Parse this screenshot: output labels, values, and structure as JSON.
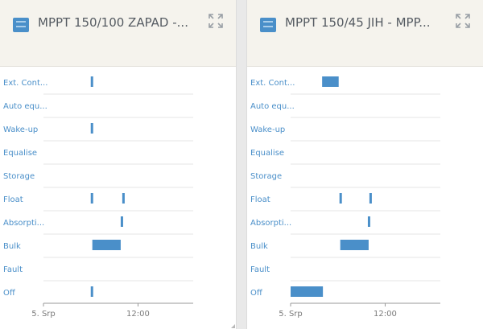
{
  "panels": [
    {
      "title": "MPPT 150/100 ZAPAD -...",
      "icon": "solar-charger-icon",
      "expand_icon": "expand-icon",
      "chart_data": {
        "type": "timeline",
        "categories": [
          "Ext. Cont...",
          "Auto equ...",
          "Wake-up",
          "Equalise",
          "Storage",
          "Float",
          "Absorpti...",
          "Bulk",
          "Fault",
          "Off"
        ],
        "x_ticks": [
          "5. Srp",
          "12:00"
        ],
        "x_range_hours": [
          0,
          19
        ],
        "segments": [
          {
            "state": "Ext. Cont...",
            "start": 6.0,
            "end": 6.3
          },
          {
            "state": "Wake-up",
            "start": 6.0,
            "end": 6.3
          },
          {
            "state": "Float",
            "start": 6.0,
            "end": 6.3
          },
          {
            "state": "Float",
            "start": 10.0,
            "end": 10.3
          },
          {
            "state": "Absorpti...",
            "start": 9.8,
            "end": 10.1
          },
          {
            "state": "Bulk",
            "start": 6.2,
            "end": 9.8
          },
          {
            "state": "Off",
            "start": 6.0,
            "end": 6.3
          }
        ]
      }
    },
    {
      "title": "MPPT 150/45 JIH - MPP...",
      "icon": "solar-charger-icon",
      "expand_icon": "expand-icon",
      "chart_data": {
        "type": "timeline",
        "categories": [
          "Ext. Cont...",
          "Auto equ...",
          "Wake-up",
          "Equalise",
          "Storage",
          "Float",
          "Absorpti...",
          "Bulk",
          "Fault",
          "Off"
        ],
        "x_ticks": [
          "5. Srp",
          "12:00"
        ],
        "x_range_hours": [
          0,
          19
        ],
        "segments": [
          {
            "state": "Ext. Cont...",
            "start": 4.0,
            "end": 6.1
          },
          {
            "state": "Float",
            "start": 6.2,
            "end": 6.5
          },
          {
            "state": "Float",
            "start": 10.0,
            "end": 10.3
          },
          {
            "state": "Absorpti...",
            "start": 9.8,
            "end": 10.1
          },
          {
            "state": "Bulk",
            "start": 6.3,
            "end": 9.9
          },
          {
            "state": "Off",
            "start": 0.0,
            "end": 4.1
          }
        ]
      }
    }
  ],
  "colors": {
    "bar": "#4a8fc9",
    "label": "#4a8fc9",
    "tick_label": "#7b7b7b",
    "grid": "#e6e6e6",
    "axis": "#9a9a9a",
    "header_bg": "#f5f3ed",
    "title": "#555b62"
  }
}
